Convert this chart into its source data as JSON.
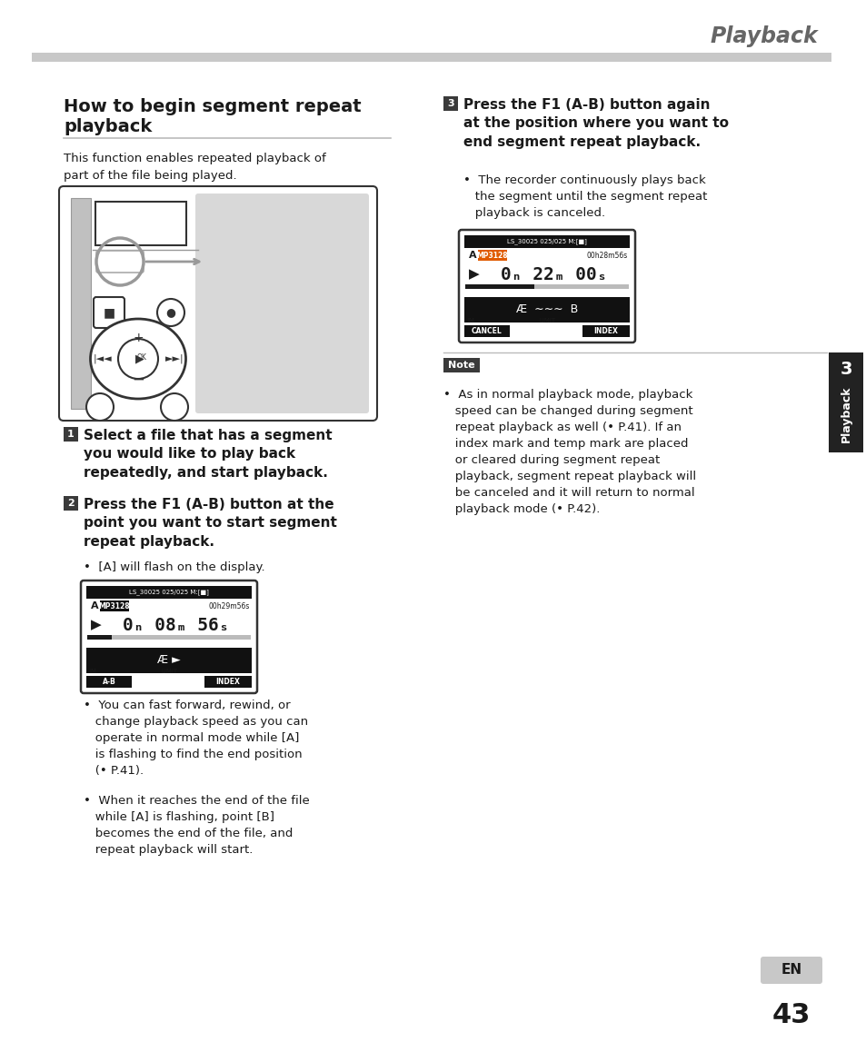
{
  "page_title": "Playback",
  "section_title_line1": "How to begin segment repeat",
  "section_title_line2": "playback",
  "intro_text": "This function enables repeated playback of\npart of the file being played.",
  "f1_label": "F1 (A-B) button",
  "step1_text": "Select a file that has a segment\nyou would like to play back\nrepeatedly, and start playback.",
  "step2_text": "Press the F1 (A-B) button at the\npoint you want to start segment\nrepeat playback.",
  "step2_bullet1": "•  [A] will flash on the display.",
  "step2_bullet2": "•  You can fast forward, rewind, or\n   change playback speed as you can\n   operate in normal mode while [A]\n   is flashing to find the end position\n   (• P.41).",
  "step2_bullet3": "•  When it reaches the end of the file\n   while [A] is flashing, point [B]\n   becomes the end of the file, and\n   repeat playback will start.",
  "step3_text": "Press the F1 (A-B) button again\nat the position where you want to\nend segment repeat playback.",
  "step3_bullet": "•  The recorder continuously plays back\n   the segment until the segment repeat\n   playback is canceled.",
  "note_text": "•  As in normal playback mode, playback\n   speed can be changed during segment\n   repeat playback as well (• P.41). If an\n   index mark and temp mark are placed\n   or cleared during segment repeat\n   playback, segment repeat playback will\n   be canceled and it will return to normal\n   playback mode (• P.42).",
  "tab_num": "3",
  "tab_label": "Playback",
  "page_num": "43",
  "en_label": "EN",
  "bg": "#ffffff",
  "gray_bar": "#c8c8c8",
  "dark": "#1a1a1a",
  "mid_gray": "#666666",
  "step_bg": "#3a3a3a",
  "note_bg": "#3a3a3a",
  "tab_bg": "#222222",
  "screen_bg": "#111111",
  "screen_border": "#333333",
  "orange": "#e05a00",
  "light_gray": "#d8d8d8",
  "rule_color": "#bbbbbb"
}
